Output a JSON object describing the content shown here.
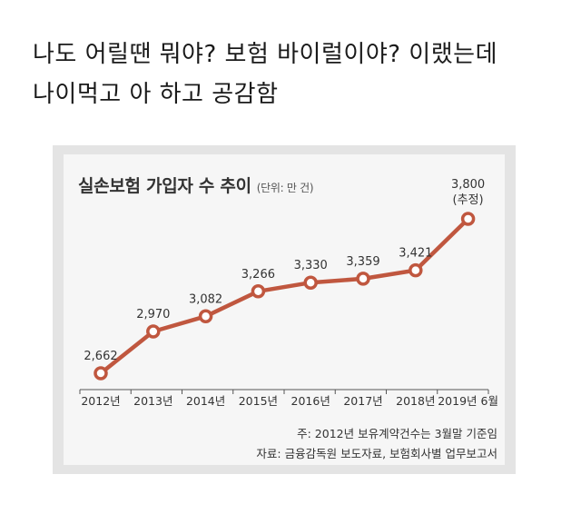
{
  "post": {
    "lines": [
      "나도 어릴땐 뭐야? 보험 바이럴이야? 이랬는데",
      "나이먹고 아 하고 공감함"
    ]
  },
  "chart_data": {
    "type": "line",
    "title": "실손보험 가입자 수 추이",
    "unit": "(단위: 만 건)",
    "categories": [
      "2012년",
      "2013년",
      "2014년",
      "2015년",
      "2016년",
      "2017년",
      "2018년",
      "2019년 6월"
    ],
    "values": [
      2662,
      2970,
      3082,
      3266,
      3330,
      3359,
      3421,
      3800
    ],
    "value_labels": [
      "2,662",
      "2,970",
      "3,082",
      "3,266",
      "3,330",
      "3,359",
      "3,421",
      "3,800"
    ],
    "annotations": [
      {
        "index": 7,
        "text": "(추정)"
      }
    ],
    "ylim": [
      2550,
      3850
    ],
    "grid": false,
    "legend": "none",
    "colors": {
      "line": "#c0573f",
      "marker_fill": "#ffffff",
      "text": "#333333"
    },
    "notes": [
      "주: 2012년 보유계약건수는 3월말 기준임",
      "자료: 금융감독원 보도자료, 보험회사별 업무보고서"
    ]
  }
}
